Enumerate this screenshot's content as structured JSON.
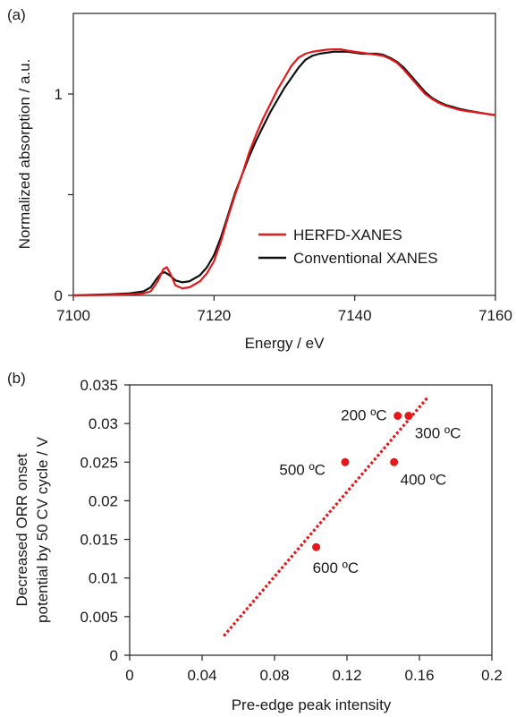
{
  "colors": {
    "red": "#e3191b",
    "black": "#111111",
    "axis": "#222222",
    "grid": "#cfcfcf"
  },
  "chart_data": [
    {
      "panel_label": "(a)",
      "type": "line",
      "xlabel": "Energy / eV",
      "ylabel": "Normalized absorption / a.u.",
      "xlim": [
        7100,
        7160
      ],
      "ylim": [
        0,
        1.4
      ],
      "x_ticks": [
        7100,
        7120,
        7140,
        7160
      ],
      "y_tick_labels": [
        {
          "value": 0,
          "label": "0"
        },
        {
          "value": 1,
          "label": "1"
        }
      ],
      "y_minor_ticks": [
        0.5
      ],
      "legend_position": "lower-right",
      "grid": false,
      "series": [
        {
          "name": "HERFD-XANES",
          "color": "#e3191b",
          "points": [
            [
              7100,
              0
            ],
            [
              7105,
              0.002
            ],
            [
              7108,
              0.005
            ],
            [
              7110,
              0.01
            ],
            [
              7111,
              0.02
            ],
            [
              7112,
              0.07
            ],
            [
              7112.8,
              0.13
            ],
            [
              7113.3,
              0.14
            ],
            [
              7113.9,
              0.1
            ],
            [
              7114.5,
              0.05
            ],
            [
              7115.5,
              0.035
            ],
            [
              7116.5,
              0.04
            ],
            [
              7118,
              0.07
            ],
            [
              7119,
              0.11
            ],
            [
              7120,
              0.17
            ],
            [
              7121,
              0.27
            ],
            [
              7122,
              0.39
            ],
            [
              7123,
              0.5
            ],
            [
              7124,
              0.6
            ],
            [
              7125,
              0.71
            ],
            [
              7126,
              0.8
            ],
            [
              7127,
              0.88
            ],
            [
              7128,
              0.95
            ],
            [
              7129,
              1.02
            ],
            [
              7130,
              1.08
            ],
            [
              7131,
              1.14
            ],
            [
              7132,
              1.18
            ],
            [
              7133,
              1.2
            ],
            [
              7134,
              1.21
            ],
            [
              7135,
              1.215
            ],
            [
              7136,
              1.22
            ],
            [
              7137,
              1.222
            ],
            [
              7138,
              1.222
            ],
            [
              7139,
              1.215
            ],
            [
              7140,
              1.21
            ],
            [
              7141,
              1.205
            ],
            [
              7142,
              1.2
            ],
            [
              7143,
              1.195
            ],
            [
              7144,
              1.19
            ],
            [
              7145,
              1.175
            ],
            [
              7146,
              1.155
            ],
            [
              7147,
              1.12
            ],
            [
              7148,
              1.08
            ],
            [
              7149,
              1.04
            ],
            [
              7150,
              1.0
            ],
            [
              7151,
              0.975
            ],
            [
              7152,
              0.955
            ],
            [
              7153,
              0.94
            ],
            [
              7154,
              0.93
            ],
            [
              7155,
              0.92
            ],
            [
              7156,
              0.915
            ],
            [
              7157,
              0.91
            ],
            [
              7158,
              0.905
            ],
            [
              7159,
              0.9
            ],
            [
              7160,
              0.895
            ]
          ]
        },
        {
          "name": "Conventional XANES",
          "color": "#111111",
          "points": [
            [
              7100,
              0
            ],
            [
              7105,
              0.005
            ],
            [
              7108,
              0.01
            ],
            [
              7110,
              0.02
            ],
            [
              7111,
              0.04
            ],
            [
              7111.8,
              0.08
            ],
            [
              7112.5,
              0.11
            ],
            [
              7113,
              0.115
            ],
            [
              7113.7,
              0.1
            ],
            [
              7114.5,
              0.075
            ],
            [
              7115.5,
              0.065
            ],
            [
              7116.5,
              0.07
            ],
            [
              7118,
              0.1
            ],
            [
              7119,
              0.14
            ],
            [
              7120,
              0.2
            ],
            [
              7121,
              0.29
            ],
            [
              7122,
              0.4
            ],
            [
              7123,
              0.51
            ],
            [
              7124,
              0.6
            ],
            [
              7125,
              0.69
            ],
            [
              7126,
              0.77
            ],
            [
              7127,
              0.84
            ],
            [
              7128,
              0.91
            ],
            [
              7129,
              0.97
            ],
            [
              7130,
              1.03
            ],
            [
              7131,
              1.08
            ],
            [
              7132,
              1.13
            ],
            [
              7133,
              1.17
            ],
            [
              7134,
              1.19
            ],
            [
              7135,
              1.2
            ],
            [
              7136,
              1.205
            ],
            [
              7137,
              1.21
            ],
            [
              7138,
              1.21
            ],
            [
              7139,
              1.21
            ],
            [
              7140,
              1.205
            ],
            [
              7141,
              1.2
            ],
            [
              7142,
              1.2
            ],
            [
              7143,
              1.2
            ],
            [
              7144,
              1.195
            ],
            [
              7145,
              1.18
            ],
            [
              7146,
              1.16
            ],
            [
              7147,
              1.13
            ],
            [
              7148,
              1.09
            ],
            [
              7149,
              1.05
            ],
            [
              7150,
              1.01
            ],
            [
              7151,
              0.98
            ],
            [
              7152,
              0.96
            ],
            [
              7153,
              0.945
            ],
            [
              7154,
              0.935
            ],
            [
              7155,
              0.925
            ],
            [
              7156,
              0.918
            ],
            [
              7157,
              0.912
            ],
            [
              7158,
              0.906
            ],
            [
              7159,
              0.9
            ],
            [
              7160,
              0.895
            ]
          ]
        }
      ]
    },
    {
      "panel_label": "(b)",
      "type": "scatter",
      "xlabel": "Pre-edge peak intensity",
      "ylabel_line1": "Decreased ORR onset",
      "ylabel_line2": "potential by 50 CV cycle / V",
      "xlim": [
        0,
        0.2
      ],
      "ylim": [
        0,
        0.035
      ],
      "x_ticks": [
        {
          "value": 0,
          "label": "0"
        },
        {
          "value": 0.04,
          "label": "0.04"
        },
        {
          "value": 0.08,
          "label": "0.08"
        },
        {
          "value": 0.12,
          "label": "0.12"
        },
        {
          "value": 0.16,
          "label": "0.16"
        },
        {
          "value": 0.2,
          "label": "0.2"
        }
      ],
      "y_ticks": [
        {
          "value": 0,
          "label": "0"
        },
        {
          "value": 0.005,
          "label": "0.005"
        },
        {
          "value": 0.01,
          "label": "0.01"
        },
        {
          "value": 0.015,
          "label": "0.015"
        },
        {
          "value": 0.02,
          "label": "0.02"
        },
        {
          "value": 0.025,
          "label": "0.025"
        },
        {
          "value": 0.03,
          "label": "0.03"
        },
        {
          "value": 0.035,
          "label": "0.035"
        }
      ],
      "grid": false,
      "color": "#e3191b",
      "points": [
        {
          "x": 0.148,
          "y": 0.031,
          "label": "200 ºC",
          "label_side": "left-up"
        },
        {
          "x": 0.154,
          "y": 0.031,
          "label": "300 ºC",
          "label_side": "right-down"
        },
        {
          "x": 0.146,
          "y": 0.025,
          "label": "400 ºC",
          "label_side": "right-down"
        },
        {
          "x": 0.119,
          "y": 0.025,
          "label": "500 ºC",
          "label_side": "left-down"
        },
        {
          "x": 0.103,
          "y": 0.014,
          "label": "600 ºC",
          "label_side": "right-down"
        }
      ],
      "trendline": {
        "x": [
          0.052,
          0.165
        ],
        "y": [
          0.0025,
          0.0335
        ],
        "style": "dotted"
      }
    }
  ]
}
